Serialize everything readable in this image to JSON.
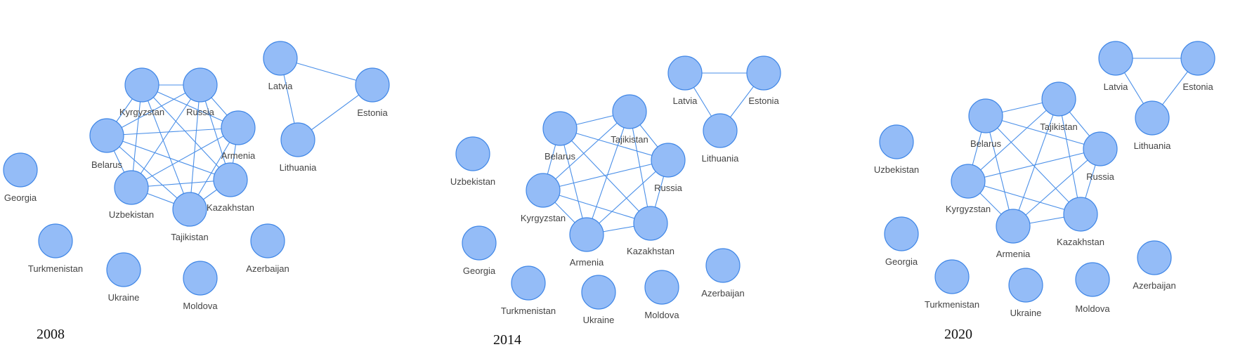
{
  "colors": {
    "node_fill": "#94bcf7",
    "node_stroke": "#3f86e6",
    "edge": "#4a8fe8",
    "label": "#444444"
  },
  "panels": [
    {
      "year": "2008",
      "nodes": [
        "Kyrgyzstan",
        "Russia",
        "Armenia",
        "Belarus",
        "Uzbekistan",
        "Kazakhstan",
        "Tajikistan",
        "Latvia",
        "Estonia",
        "Lithuania",
        "Georgia",
        "Turkmenistan",
        "Ukraine",
        "Moldova",
        "Azerbaijan"
      ],
      "edges": [
        [
          "Latvia",
          "Estonia"
        ],
        [
          "Latvia",
          "Lithuania"
        ],
        [
          "Estonia",
          "Lithuania"
        ],
        [
          "Kyrgyzstan",
          "Russia"
        ],
        [
          "Kyrgyzstan",
          "Armenia"
        ],
        [
          "Kyrgyzstan",
          "Belarus"
        ],
        [
          "Kyrgyzstan",
          "Uzbekistan"
        ],
        [
          "Kyrgyzstan",
          "Kazakhstan"
        ],
        [
          "Kyrgyzstan",
          "Tajikistan"
        ],
        [
          "Russia",
          "Armenia"
        ],
        [
          "Russia",
          "Belarus"
        ],
        [
          "Russia",
          "Uzbekistan"
        ],
        [
          "Russia",
          "Kazakhstan"
        ],
        [
          "Russia",
          "Tajikistan"
        ],
        [
          "Armenia",
          "Belarus"
        ],
        [
          "Armenia",
          "Uzbekistan"
        ],
        [
          "Armenia",
          "Kazakhstan"
        ],
        [
          "Armenia",
          "Tajikistan"
        ],
        [
          "Belarus",
          "Uzbekistan"
        ],
        [
          "Belarus",
          "Kazakhstan"
        ],
        [
          "Belarus",
          "Tajikistan"
        ],
        [
          "Uzbekistan",
          "Kazakhstan"
        ],
        [
          "Uzbekistan",
          "Tajikistan"
        ],
        [
          "Kazakhstan",
          "Tajikistan"
        ]
      ]
    },
    {
      "year": "2014",
      "nodes": [
        "Tajikistan",
        "Belarus",
        "Russia",
        "Kyrgyzstan",
        "Armenia",
        "Kazakhstan",
        "Latvia",
        "Estonia",
        "Lithuania",
        "Uzbekistan",
        "Georgia",
        "Turkmenistan",
        "Ukraine",
        "Moldova",
        "Azerbaijan"
      ],
      "edges": [
        [
          "Latvia",
          "Estonia"
        ],
        [
          "Latvia",
          "Lithuania"
        ],
        [
          "Estonia",
          "Lithuania"
        ],
        [
          "Belarus",
          "Tajikistan"
        ],
        [
          "Belarus",
          "Russia"
        ],
        [
          "Belarus",
          "Kyrgyzstan"
        ],
        [
          "Belarus",
          "Armenia"
        ],
        [
          "Belarus",
          "Kazakhstan"
        ],
        [
          "Tajikistan",
          "Russia"
        ],
        [
          "Tajikistan",
          "Kyrgyzstan"
        ],
        [
          "Tajikistan",
          "Armenia"
        ],
        [
          "Tajikistan",
          "Kazakhstan"
        ],
        [
          "Russia",
          "Kyrgyzstan"
        ],
        [
          "Russia",
          "Armenia"
        ],
        [
          "Russia",
          "Kazakhstan"
        ],
        [
          "Kyrgyzstan",
          "Armenia"
        ],
        [
          "Kyrgyzstan",
          "Kazakhstan"
        ],
        [
          "Armenia",
          "Kazakhstan"
        ]
      ]
    },
    {
      "year": "2020",
      "nodes": [
        "Tajikistan",
        "Belarus",
        "Russia",
        "Kyrgyzstan",
        "Armenia",
        "Kazakhstan",
        "Latvia",
        "Estonia",
        "Lithuania",
        "Uzbekistan",
        "Georgia",
        "Turkmenistan",
        "Ukraine",
        "Moldova",
        "Azerbaijan"
      ],
      "edges": [
        [
          "Latvia",
          "Estonia"
        ],
        [
          "Latvia",
          "Lithuania"
        ],
        [
          "Estonia",
          "Lithuania"
        ],
        [
          "Belarus",
          "Tajikistan"
        ],
        [
          "Belarus",
          "Russia"
        ],
        [
          "Belarus",
          "Kyrgyzstan"
        ],
        [
          "Belarus",
          "Armenia"
        ],
        [
          "Belarus",
          "Kazakhstan"
        ],
        [
          "Tajikistan",
          "Russia"
        ],
        [
          "Tajikistan",
          "Kyrgyzstan"
        ],
        [
          "Tajikistan",
          "Armenia"
        ],
        [
          "Tajikistan",
          "Kazakhstan"
        ],
        [
          "Russia",
          "Kyrgyzstan"
        ],
        [
          "Russia",
          "Armenia"
        ],
        [
          "Russia",
          "Kazakhstan"
        ],
        [
          "Kyrgyzstan",
          "Armenia"
        ],
        [
          "Kyrgyzstan",
          "Kazakhstan"
        ],
        [
          "Armenia",
          "Kazakhstan"
        ]
      ]
    }
  ]
}
